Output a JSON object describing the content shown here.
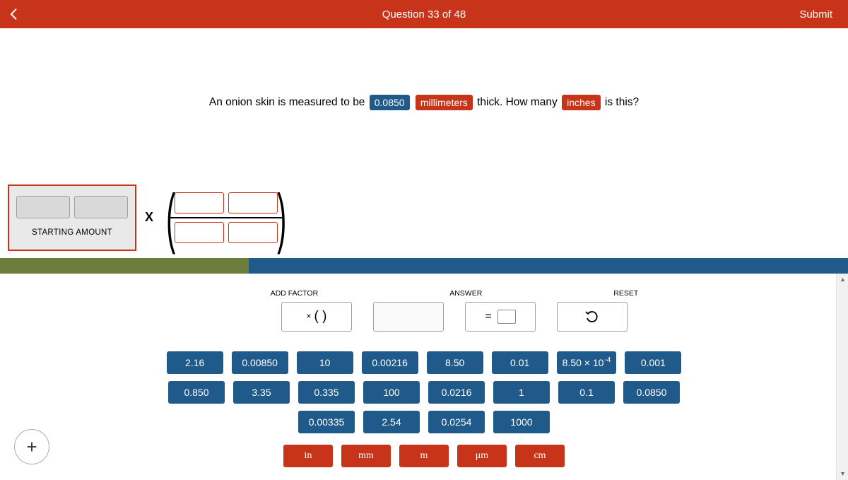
{
  "topbar": {
    "title": "Question 33 of 48",
    "submit": "Submit"
  },
  "question": {
    "pre": "An onion skin is measured to be ",
    "value": "0.0850",
    "unit_from": "millimeters",
    "mid": " thick. How many ",
    "unit_to": "inches",
    "post": " is this?"
  },
  "starting_label": "STARTING AMOUNT",
  "tool_labels": {
    "add_factor": "ADD FACTOR",
    "answer": "ANSWER",
    "reset": "RESET"
  },
  "addfactor_display": "(   )",
  "tiles": {
    "rows": [
      [
        "2.16",
        "0.00850",
        "10",
        "0.00216",
        "8.50",
        "0.01",
        "8.50 × 10⁻⁴",
        "0.001"
      ],
      [
        "0.850",
        "3.35",
        "0.335",
        "100",
        "0.0216",
        "1",
        "0.1",
        "0.0850"
      ],
      [
        "0.00335",
        "2.54",
        "0.0254",
        "1000"
      ]
    ],
    "units": [
      "in",
      "mm",
      "m",
      "μm",
      "cm"
    ]
  },
  "colors": {
    "brand_red": "#c8341a",
    "brand_blue": "#1f5a8b",
    "olive": "#6d7d3c"
  }
}
